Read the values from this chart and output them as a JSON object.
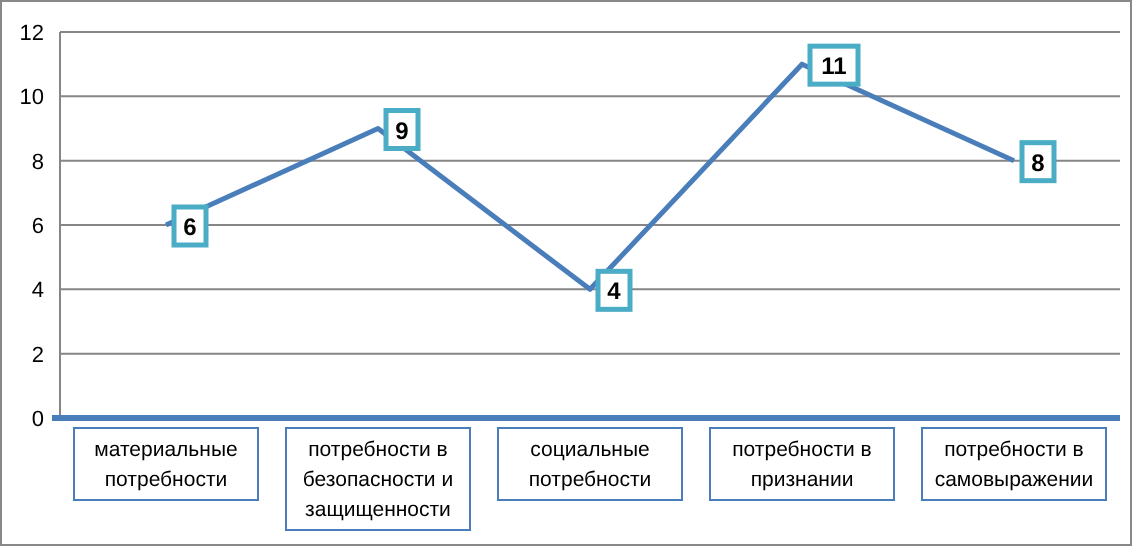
{
  "chart_data": {
    "type": "line",
    "categories": [
      "материальные потребности",
      "потребности в безопасности и защищенности",
      "социальные потребности",
      "потребности в признании",
      "потребности в самовыражении"
    ],
    "series": [
      {
        "color": "#4a7ebb",
        "values": [
          6,
          9,
          4,
          11,
          8
        ]
      }
    ],
    "ylim": [
      0,
      12
    ],
    "yticks": [
      0,
      2,
      4,
      6,
      8,
      10,
      12
    ],
    "grid": "y",
    "data_labels": true,
    "marker": "square",
    "line_style": "solid"
  }
}
